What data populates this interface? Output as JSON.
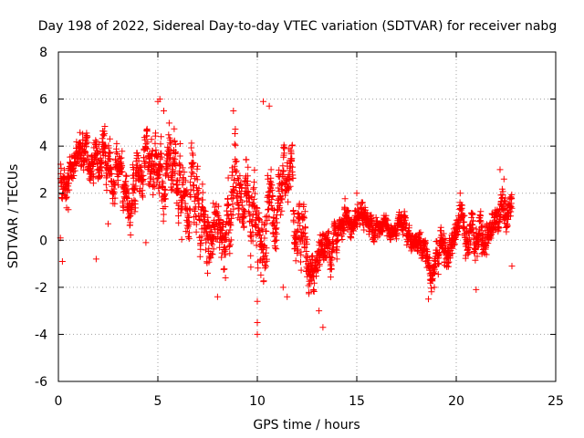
{
  "chart_data": {
    "type": "scatter",
    "title": "Day 198 of 2022, Sidereal Day-to-day VTEC variation (SDTVAR) for receiver nabg",
    "xlabel": "GPS time / hours",
    "ylabel": "SDTVAR / TECUs",
    "xlim": [
      0,
      25
    ],
    "ylim": [
      -6,
      8
    ],
    "xticks": [
      0,
      5,
      10,
      15,
      20,
      25
    ],
    "yticks": [
      -6,
      -4,
      -2,
      0,
      2,
      4,
      6,
      8
    ],
    "grid": true,
    "marker": "+",
    "color": "#ff0000",
    "series": [
      {
        "name": "SDTVAR",
        "trend": [
          [
            0.1,
            3.0
          ],
          [
            0.4,
            2.8
          ],
          [
            0.8,
            3.5
          ],
          [
            1.2,
            3.9
          ],
          [
            1.6,
            3.7
          ],
          [
            2.0,
            3.3
          ],
          [
            2.4,
            3.0
          ],
          [
            2.8,
            2.8
          ],
          [
            3.2,
            2.6
          ],
          [
            3.6,
            2.1
          ],
          [
            4.0,
            2.9
          ],
          [
            4.4,
            3.5
          ],
          [
            4.8,
            3.1
          ],
          [
            5.2,
            2.9
          ],
          [
            5.6,
            2.4
          ],
          [
            6.0,
            2.3
          ],
          [
            6.4,
            1.5
          ],
          [
            6.8,
            1.9
          ],
          [
            7.2,
            0.6
          ],
          [
            7.6,
            -0.4
          ],
          [
            8.0,
            0.3
          ],
          [
            8.4,
            0.2
          ],
          [
            8.8,
            1.8
          ],
          [
            9.2,
            2.0
          ],
          [
            9.6,
            0.6
          ],
          [
            10.0,
            1.0
          ],
          [
            10.3,
            -1.2
          ],
          [
            10.6,
            2.8
          ],
          [
            10.9,
            0.5
          ],
          [
            11.2,
            1.5
          ],
          [
            11.6,
            2.6
          ],
          [
            12.0,
            0.0
          ],
          [
            12.4,
            -0.8
          ],
          [
            12.8,
            -1.6
          ],
          [
            13.2,
            -0.6
          ],
          [
            13.6,
            -0.3
          ],
          [
            14.0,
            0.1
          ],
          [
            14.4,
            0.3
          ],
          [
            14.8,
            0.9
          ],
          [
            15.2,
            1.1
          ],
          [
            15.6,
            0.6
          ],
          [
            16.0,
            0.4
          ],
          [
            16.4,
            0.5
          ],
          [
            16.8,
            0.7
          ],
          [
            17.2,
            0.3
          ],
          [
            17.6,
            0.4
          ],
          [
            18.0,
            0.2
          ],
          [
            18.4,
            -0.6
          ],
          [
            18.8,
            -1.6
          ],
          [
            19.2,
            -0.7
          ],
          [
            19.6,
            -0.4
          ],
          [
            20.0,
            0.4
          ],
          [
            20.4,
            0.5
          ],
          [
            20.8,
            0.6
          ],
          [
            21.2,
            0.1
          ],
          [
            21.6,
            0.2
          ],
          [
            22.0,
            1.2
          ],
          [
            22.4,
            1.6
          ],
          [
            22.8,
            0.8
          ]
        ],
        "spread": [
          [
            0,
            1.0
          ],
          [
            2,
            1.0
          ],
          [
            4,
            1.3
          ],
          [
            6,
            1.6
          ],
          [
            8,
            1.5
          ],
          [
            10,
            1.7
          ],
          [
            12,
            1.4
          ],
          [
            14,
            0.8
          ],
          [
            16,
            0.5
          ],
          [
            18,
            0.5
          ],
          [
            19,
            0.8
          ],
          [
            21,
            0.9
          ],
          [
            23,
            0.8
          ]
        ],
        "samples": [
          [
            0.1,
            0.1
          ],
          [
            0.2,
            -0.9
          ],
          [
            0.5,
            1.3
          ],
          [
            1.9,
            -0.8
          ],
          [
            2.5,
            0.7
          ],
          [
            4.4,
            -0.1
          ],
          [
            5.0,
            5.9
          ],
          [
            5.1,
            6.0
          ],
          [
            5.3,
            5.5
          ],
          [
            7.5,
            -1.4
          ],
          [
            8.0,
            -2.4
          ],
          [
            8.4,
            -1.6
          ],
          [
            8.8,
            5.5
          ],
          [
            10.0,
            -2.6
          ],
          [
            10.0,
            -3.5
          ],
          [
            10.0,
            -4.0
          ],
          [
            10.3,
            5.9
          ],
          [
            10.6,
            5.7
          ],
          [
            11.3,
            -2.0
          ],
          [
            11.5,
            -2.4
          ],
          [
            13.1,
            -3.0
          ],
          [
            13.3,
            -3.7
          ],
          [
            14.0,
            -0.8
          ],
          [
            15.0,
            2.0
          ],
          [
            15.3,
            1.6
          ],
          [
            18.6,
            -2.5
          ],
          [
            18.9,
            -2.0
          ],
          [
            21.0,
            -2.1
          ],
          [
            22.2,
            3.0
          ],
          [
            22.4,
            2.6
          ],
          [
            22.8,
            -1.1
          ]
        ],
        "count": 2600
      }
    ]
  }
}
